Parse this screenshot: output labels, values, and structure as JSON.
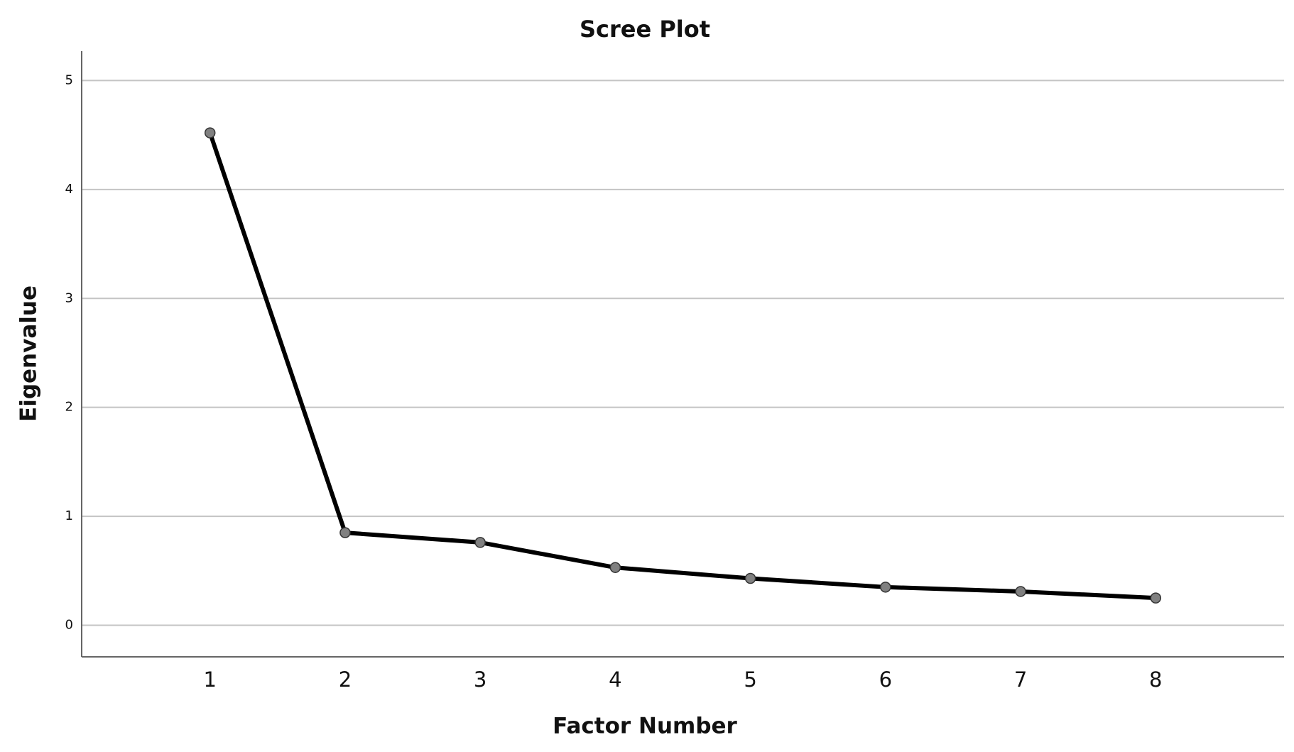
{
  "chart_data": {
    "type": "line",
    "title": "Scree Plot",
    "x_label": "Factor Number",
    "y_label": "Eigenvalue",
    "x": [
      1,
      2,
      3,
      4,
      5,
      6,
      7,
      8
    ],
    "values": [
      4.52,
      0.85,
      0.76,
      0.53,
      0.43,
      0.35,
      0.31,
      0.25
    ],
    "color": "#000000",
    "marker_color": "#808080",
    "xlim": [
      0.05,
      8.95
    ],
    "xticks": [
      1,
      2,
      3,
      4,
      5,
      6,
      7,
      8
    ],
    "ylim": [
      -0.29,
      5.27
    ],
    "yticks": [
      0,
      1,
      2,
      3,
      4,
      5
    ],
    "grid": true
  }
}
